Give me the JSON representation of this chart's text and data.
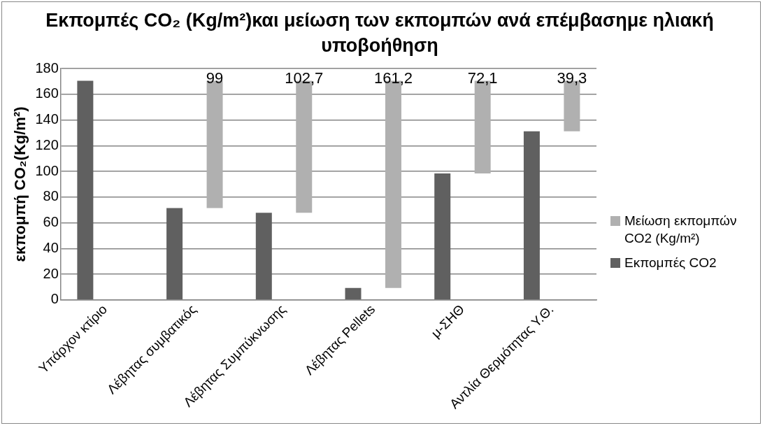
{
  "chart_data": {
    "type": "bar",
    "title": "Εκπομπές CO₂ (Kg/m²)και μείωση των εκπομπών ανά επέμβασημε ηλιακή υποβοήθηση",
    "ylabel": "εκπομπή CO₂(Kg/m²)",
    "categories": [
      "Υπάρχον κτίριο",
      "Λέβητας συμβατικός",
      "Λέβητας Συμπύκνωσης",
      "Λέβητας Pellets",
      "μ-ΣΗΘ",
      "Αντλία Θερμότητας Υ.Θ."
    ],
    "series": [
      {
        "name": "Εκπομπές CO2",
        "color": "#606060",
        "values": [
          170.5,
          71.5,
          67.8,
          9.3,
          98.4,
          131.2
        ]
      },
      {
        "name": "Μείωση εκπομπών CO2 (Kg/m²)",
        "color": "#b0b0b0",
        "values": [
          null,
          99,
          102.7,
          161.2,
          72.1,
          39.3
        ],
        "base": [
          null,
          71.5,
          67.8,
          9.3,
          98.4,
          131.2
        ],
        "value_labels": [
          null,
          "99",
          "102,7",
          "161,2",
          "72,1",
          "39,3"
        ]
      }
    ],
    "ylim": [
      0,
      180
    ],
    "yticks": [
      0,
      20,
      40,
      60,
      80,
      100,
      120,
      140,
      160,
      180
    ],
    "grid": "y",
    "legend": "right"
  }
}
